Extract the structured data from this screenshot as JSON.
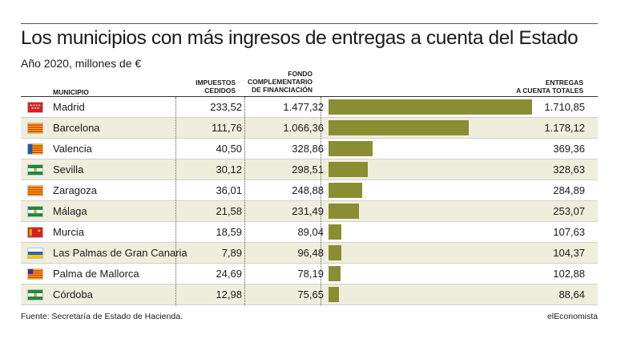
{
  "title": "Los municipios con más ingresos de entregas a cuenta del Estado",
  "subtitle": "Año 2020, millones de €",
  "headers": {
    "municipio": "MUNICIPIO",
    "impuestos": "IMPUESTOS\nCEDIDOS",
    "fondo": "FONDO\nCOMPLEMENTARIO\nDE FINANCIACIÓN",
    "entregas": "ENTREGAS\nA CUENTA TOTALES"
  },
  "source": "Fuente: Secretaría de Estado de Hacienda.",
  "brand": "elEconomista",
  "colors": {
    "bar": "#8a8e32",
    "row_shade": "#efeedd"
  },
  "chart_data": {
    "type": "bar",
    "orientation": "horizontal",
    "title": "Los municipios con más ingresos de entregas a cuenta del Estado",
    "subtitle": "Año 2020, millones de €",
    "categories": [
      "Madrid",
      "Barcelona",
      "Valencia",
      "Sevilla",
      "Zaragoza",
      "Málaga",
      "Murcia",
      "Las Palmas de Gran Canaria",
      "Palma de Mallorca",
      "Córdoba"
    ],
    "flags": [
      "madrid-flag-icon",
      "barcelona-flag-icon",
      "valencia-flag-icon",
      "sevilla-flag-icon",
      "zaragoza-flag-icon",
      "malaga-flag-icon",
      "murcia-flag-icon",
      "las-palmas-flag-icon",
      "palma-flag-icon",
      "cordoba-flag-icon"
    ],
    "impuestos_cedidos": [
      233.52,
      111.76,
      40.5,
      30.12,
      36.01,
      21.58,
      18.59,
      7.89,
      24.69,
      12.98
    ],
    "impuestos_cedidos_labels": [
      "233,52",
      "111,76",
      "40,50",
      "30,12",
      "36,01",
      "21,58",
      "18,59",
      "7,89",
      "24,69",
      "12,98"
    ],
    "fondo_complementario": [
      1477.32,
      1066.36,
      328.86,
      298.51,
      248.88,
      231.49,
      89.04,
      96.48,
      78.19,
      75.65
    ],
    "fondo_complementario_labels": [
      "1.477,32",
      "1.066,36",
      "328,86",
      "298,51",
      "248,88",
      "231,49",
      "89,04",
      "96,48",
      "78,19",
      "75,65"
    ],
    "entregas_totales": [
      1710.85,
      1178.12,
      369.36,
      328.63,
      284.89,
      253.07,
      107.63,
      104.37,
      102.88,
      88.64
    ],
    "entregas_totales_labels": [
      "1.710,85",
      "1.178,12",
      "369,36",
      "328,63",
      "284,89",
      "253,07",
      "107,63",
      "104,37",
      "102,88",
      "88,64"
    ],
    "xlim": [
      0,
      1710.85
    ]
  }
}
